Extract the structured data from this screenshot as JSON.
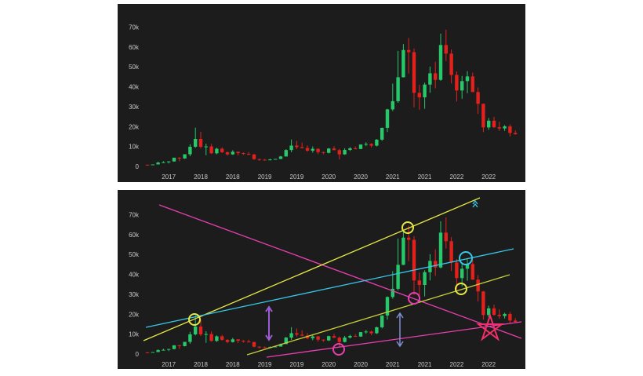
{
  "chart_data": {
    "type": "candlestick",
    "categories": [
      null,
      null,
      null,
      null,
      "2017",
      null,
      null,
      null,
      null,
      null,
      "2018",
      null,
      null,
      null,
      null,
      null,
      "2018",
      null,
      null,
      null,
      null,
      null,
      "2019",
      null,
      null,
      null,
      null,
      null,
      "2019",
      null,
      null,
      null,
      null,
      null,
      "2020",
      null,
      null,
      null,
      null,
      null,
      "2020",
      null,
      null,
      null,
      null,
      null,
      "2021",
      null,
      null,
      null,
      null,
      null,
      "2021",
      null,
      null,
      null,
      null,
      null,
      "2022",
      null,
      null,
      null,
      null,
      null,
      "2022",
      null,
      null,
      null,
      null,
      null
    ],
    "open": [
      1190,
      1080,
      1350,
      2300,
      2480,
      2880,
      4740,
      4340,
      6470,
      10230,
      14160,
      10220,
      10400,
      6940,
      9240,
      7500,
      6400,
      7730,
      7030,
      6630,
      6370,
      4040,
      3740,
      3460,
      3850,
      4110,
      5350,
      8570,
      10820,
      10080,
      9600,
      8290,
      9200,
      7560,
      7190,
      9350,
      8540,
      6420,
      8630,
      9450,
      9140,
      11350,
      11660,
      10780,
      13800,
      19700,
      28990,
      33110,
      45140,
      58800,
      57720,
      37300,
      35040,
      41460,
      47100,
      43820,
      61300,
      57000,
      46300,
      38480,
      43190,
      45540,
      37710,
      31790,
      19940,
      23310,
      20050,
      19430,
      20490,
      17170
    ],
    "high": [
      1280,
      1350,
      2760,
      3000,
      2920,
      4770,
      4980,
      6470,
      11500,
      19800,
      17700,
      11790,
      11690,
      9760,
      9960,
      7770,
      8480,
      7760,
      7410,
      7600,
      6550,
      4230,
      4110,
      4210,
      4120,
      5640,
      9000,
      13880,
      13200,
      12330,
      10920,
      10370,
      9510,
      7750,
      9580,
      10500,
      9190,
      9460,
      10070,
      10400,
      11440,
      12470,
      12070,
      14100,
      19860,
      29300,
      41950,
      58350,
      61780,
      64860,
      59590,
      41300,
      42400,
      50500,
      52920,
      67000,
      69000,
      59050,
      47990,
      45800,
      48190,
      47440,
      40000,
      31990,
      24670,
      25200,
      22800,
      21090,
      21480,
      18390
    ],
    "low": [
      890,
      1060,
      1350,
      2100,
      1830,
      2670,
      2970,
      4160,
      5500,
      9700,
      9400,
      6000,
      6600,
      6450,
      7040,
      5800,
      6130,
      5880,
      6100,
      6170,
      3650,
      3150,
      3400,
      3400,
      3740,
      4070,
      5350,
      7480,
      9080,
      9350,
      7760,
      7300,
      6530,
      6430,
      6870,
      8450,
      3850,
      6160,
      8120,
      8910,
      8980,
      10540,
      9880,
      10430,
      13200,
      17600,
      28130,
      32300,
      45000,
      47000,
      30000,
      28800,
      29300,
      37330,
      39600,
      43300,
      53300,
      42000,
      32950,
      34320,
      37170,
      37700,
      26700,
      17600,
      18780,
      19600,
      18150,
      18190,
      15480,
      16300
    ],
    "close": [
      1080,
      1350,
      2300,
      2480,
      2880,
      4740,
      4340,
      6470,
      10230,
      14160,
      10220,
      10400,
      6940,
      9240,
      7500,
      6400,
      7730,
      7030,
      6630,
      6370,
      4040,
      3740,
      3460,
      3850,
      4110,
      5350,
      8570,
      10820,
      10080,
      9600,
      8290,
      9200,
      7560,
      7190,
      9350,
      8540,
      6420,
      8630,
      9450,
      9140,
      11350,
      11660,
      10780,
      13800,
      19700,
      28990,
      33110,
      45140,
      58800,
      57720,
      37300,
      35040,
      41460,
      47100,
      43820,
      61300,
      57000,
      46300,
      38480,
      43190,
      45540,
      37710,
      31790,
      19940,
      23310,
      20050,
      19430,
      20490,
      17170,
      16540
    ],
    "up_color": "#26c86a",
    "down_color": "#e2211c",
    "ylim": [
      -2000,
      78000
    ],
    "yticks": [
      0,
      {
        "value": 10000,
        "label": "10k"
      },
      {
        "value": 20000,
        "label": "20k"
      },
      {
        "value": 30000,
        "label": "30k"
      },
      {
        "value": 40000,
        "label": "40k"
      },
      {
        "value": 50000,
        "label": "50k"
      },
      {
        "value": 60000,
        "label": "60k"
      },
      {
        "value": 70000,
        "label": "70k"
      }
    ],
    "grid": false
  }
}
